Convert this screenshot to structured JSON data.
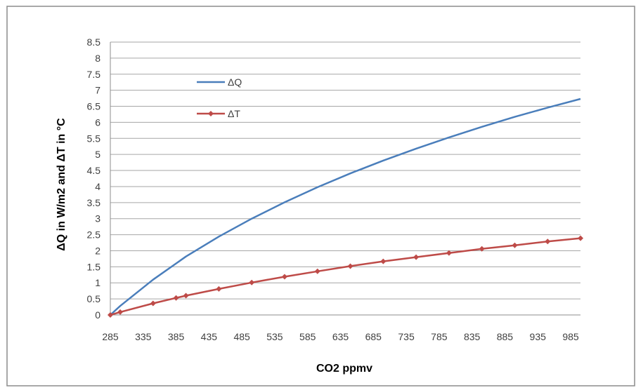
{
  "chart_data": {
    "type": "line",
    "title": "",
    "xlabel": "CO2 ppmv",
    "ylabel": "ΔQ in W/m2  and  ΔT in °C",
    "x_ticks": [
      285,
      335,
      385,
      435,
      485,
      535,
      585,
      635,
      685,
      735,
      785,
      835,
      885,
      935,
      985
    ],
    "y_ticks": [
      "0",
      "0.5",
      "1",
      "1.5",
      "2",
      "2.5",
      "3",
      "3.5",
      "4",
      "4.5",
      "5",
      "5.5",
      "6",
      "6.5",
      "7",
      "7.5",
      "8",
      "8.5"
    ],
    "xlim": [
      285,
      1000
    ],
    "ylim": [
      0,
      8.5
    ],
    "grid": "horizontal",
    "legend_position": "top-left",
    "series": [
      {
        "name": "ΔQ",
        "color": "#4a7ebb",
        "marker": "none",
        "x": [
          285,
          300,
          350,
          400,
          450,
          500,
          550,
          600,
          650,
          700,
          750,
          800,
          850,
          900,
          950,
          1000
        ],
        "y": [
          0,
          0.28,
          1.1,
          1.82,
          2.44,
          3.0,
          3.51,
          3.98,
          4.41,
          4.81,
          5.18,
          5.53,
          5.86,
          6.17,
          6.46,
          6.73
        ]
      },
      {
        "name": "ΔT",
        "color": "#be4b48",
        "marker": "diamond",
        "x": [
          285,
          300,
          350,
          385,
          400,
          450,
          500,
          550,
          600,
          650,
          700,
          750,
          800,
          850,
          900,
          950,
          1000
        ],
        "y": [
          0,
          0.09,
          0.36,
          0.53,
          0.6,
          0.81,
          1.01,
          1.19,
          1.36,
          1.52,
          1.67,
          1.8,
          1.93,
          2.06,
          2.17,
          2.29,
          2.39
        ]
      }
    ]
  }
}
